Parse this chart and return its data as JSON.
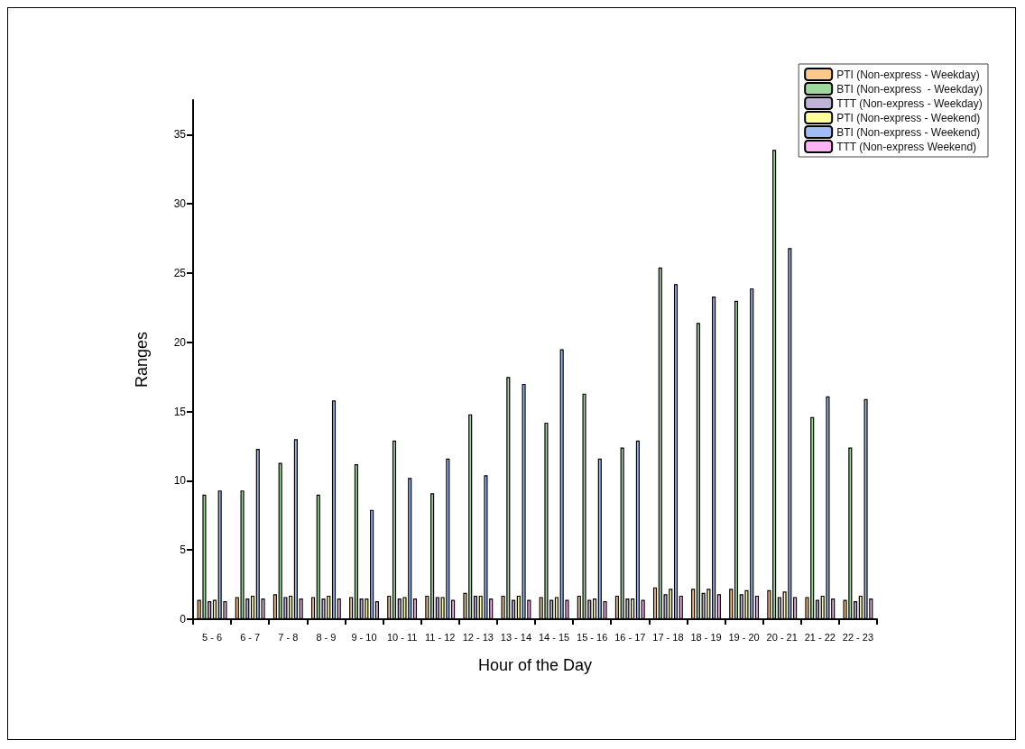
{
  "chart_data": {
    "type": "bar",
    "xlabel": "Hour of the Day",
    "ylabel": "Ranges",
    "categories": [
      "5 - 6",
      "6 - 7",
      "7 - 8",
      "8 - 9",
      "9 - 10",
      "10 - 11",
      "11 - 12",
      "12 - 13",
      "13 - 14",
      "14 - 15",
      "15 - 16",
      "16 - 17",
      "17 - 18",
      "18 - 19",
      "19 - 20",
      "20 - 21",
      "21 - 22",
      "22 - 23"
    ],
    "series": [
      {
        "name": "PTI (Non-express - Weekday)",
        "color": "#fdc98a",
        "values": [
          1.4,
          1.6,
          1.8,
          1.6,
          1.6,
          1.7,
          1.7,
          1.9,
          1.7,
          1.6,
          1.7,
          1.7,
          2.3,
          2.2,
          2.2,
          2.1,
          1.6,
          1.4
        ]
      },
      {
        "name": "BTI (Non-express  - Weekday)",
        "color": "#9ed89a",
        "values": [
          9.0,
          9.3,
          11.3,
          9.0,
          11.2,
          12.9,
          9.1,
          14.8,
          17.5,
          14.2,
          16.3,
          12.4,
          25.4,
          21.4,
          23.0,
          33.9,
          14.6,
          12.4
        ]
      },
      {
        "name": "TTT (Non-express - Weekday)",
        "color": "#c0b2d8",
        "values": [
          1.3,
          1.5,
          1.6,
          1.5,
          1.5,
          1.5,
          1.6,
          1.7,
          1.4,
          1.4,
          1.4,
          1.5,
          1.8,
          1.9,
          1.8,
          1.6,
          1.4,
          1.3
        ]
      },
      {
        "name": "PTI (Non-express - Weekend)",
        "color": "#ffff99",
        "values": [
          1.4,
          1.7,
          1.7,
          1.7,
          1.5,
          1.6,
          1.6,
          1.7,
          1.7,
          1.6,
          1.5,
          1.5,
          2.2,
          2.2,
          2.1,
          2.0,
          1.7,
          1.7
        ]
      },
      {
        "name": "BTI (Non-express - Weekend)",
        "color": "#9fbcf5",
        "values": [
          9.3,
          12.3,
          13.0,
          15.8,
          7.9,
          10.2,
          11.6,
          10.4,
          17.0,
          19.5,
          11.6,
          12.9,
          24.2,
          23.3,
          23.9,
          26.8,
          16.1,
          15.9
        ]
      },
      {
        "name": "TTT (Non-express Weekend)",
        "color": "#ffb3f5",
        "values": [
          1.3,
          1.5,
          1.5,
          1.5,
          1.3,
          1.5,
          1.4,
          1.5,
          1.4,
          1.4,
          1.3,
          1.4,
          1.7,
          1.8,
          1.7,
          1.6,
          1.5,
          1.5
        ]
      }
    ],
    "ylim": [
      0,
      37.5
    ],
    "yticks": [
      0,
      5,
      10,
      15,
      20,
      25,
      30,
      35
    ],
    "grid": false,
    "legend": "top right"
  }
}
